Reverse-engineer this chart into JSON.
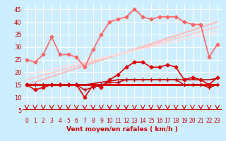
{
  "xlabel": "Vent moyen/en rafales ( km/h )",
  "bg_color": "#cceeff",
  "grid_color": "#ffffff",
  "xlim": [
    -0.5,
    23.5
  ],
  "ylim": [
    5,
    47
  ],
  "yticks": [
    5,
    10,
    15,
    20,
    25,
    30,
    35,
    40,
    45
  ],
  "xticks": [
    0,
    1,
    2,
    3,
    4,
    5,
    6,
    7,
    8,
    9,
    10,
    11,
    12,
    13,
    14,
    15,
    16,
    17,
    18,
    19,
    20,
    21,
    22,
    23
  ],
  "lines": [
    {
      "x": [
        0,
        1,
        2,
        3,
        4,
        5,
        6,
        7,
        8,
        9,
        10,
        11,
        12,
        13,
        14,
        15,
        16,
        17,
        18,
        19,
        20,
        21,
        22,
        23
      ],
      "y": [
        15,
        13,
        14,
        15,
        15,
        15,
        15,
        10,
        15,
        14,
        17,
        19,
        22,
        24,
        24,
        22,
        22,
        23,
        22,
        17,
        18,
        17,
        15,
        18
      ],
      "color": "#dd0000",
      "lw": 1.2,
      "marker": "D",
      "ms": 2.5,
      "zorder": 6
    },
    {
      "x": [
        0,
        1,
        2,
        3,
        4,
        5,
        6,
        7,
        8,
        9,
        10,
        11,
        12,
        13,
        14,
        15,
        16,
        17,
        18,
        19,
        20,
        21,
        22,
        23
      ],
      "y": [
        15,
        15,
        15,
        15,
        15,
        15,
        15,
        15,
        15,
        15,
        15,
        15,
        15,
        15,
        15,
        15,
        15,
        15,
        15,
        15,
        15,
        15,
        15,
        15
      ],
      "color": "#dd0000",
      "lw": 2.0,
      "marker": null,
      "ms": 0,
      "zorder": 5
    },
    {
      "x": [
        0,
        1,
        2,
        3,
        4,
        5,
        6,
        7,
        8,
        9,
        10,
        11,
        12,
        13,
        14,
        15,
        16,
        17,
        18,
        19,
        20,
        21,
        22,
        23
      ],
      "y": [
        15,
        15,
        15,
        15,
        15,
        15,
        15,
        15,
        15.5,
        16,
        16.5,
        17,
        17,
        17,
        17,
        17,
        17,
        17,
        17,
        17,
        17,
        17,
        17,
        17.5
      ],
      "color": "#bb0000",
      "lw": 1.2,
      "marker": null,
      "ms": 0,
      "zorder": 5
    },
    {
      "x": [
        0,
        1,
        2,
        3,
        4,
        5,
        6,
        7,
        8,
        9,
        10,
        11,
        12,
        13,
        14,
        15,
        16,
        17,
        18,
        19,
        20,
        21,
        22,
        23
      ],
      "y": [
        15,
        15,
        15,
        15,
        15,
        15,
        15,
        13,
        14,
        15,
        16,
        16,
        17,
        17,
        17,
        17,
        17,
        17,
        17,
        15,
        15,
        15,
        14,
        15
      ],
      "color": "#cc0000",
      "lw": 1.0,
      "marker": "+",
      "ms": 4,
      "zorder": 6
    },
    {
      "x": [
        0,
        1,
        2,
        3,
        4,
        5,
        6,
        7,
        8,
        9,
        10,
        11,
        12,
        13,
        14,
        15,
        16,
        17,
        18,
        19,
        20,
        21,
        22,
        23
      ],
      "y": [
        25,
        24,
        27,
        34,
        27,
        27,
        26,
        22,
        29,
        35,
        40,
        41,
        42,
        45,
        42,
        41,
        42,
        42,
        42,
        40,
        39,
        39,
        26,
        31
      ],
      "color": "#ff6666",
      "lw": 1.2,
      "marker": "D",
      "ms": 2.5,
      "zorder": 4
    },
    {
      "x": [
        0,
        23
      ],
      "y": [
        15,
        40
      ],
      "color": "#ffbbbb",
      "lw": 1.5,
      "marker": null,
      "ms": 0,
      "zorder": 2
    },
    {
      "x": [
        0,
        23
      ],
      "y": [
        17,
        38
      ],
      "color": "#ffcccc",
      "lw": 1.5,
      "marker": null,
      "ms": 0,
      "zorder": 2
    },
    {
      "x": [
        0,
        23
      ],
      "y": [
        19,
        36
      ],
      "color": "#ffdddd",
      "lw": 1.2,
      "marker": null,
      "ms": 0,
      "zorder": 2
    }
  ],
  "arrow_color": "#cc0000",
  "tick_color": "#cc0000",
  "axis_label_color": "#cc0000",
  "axis_line_color": "#cc0000"
}
